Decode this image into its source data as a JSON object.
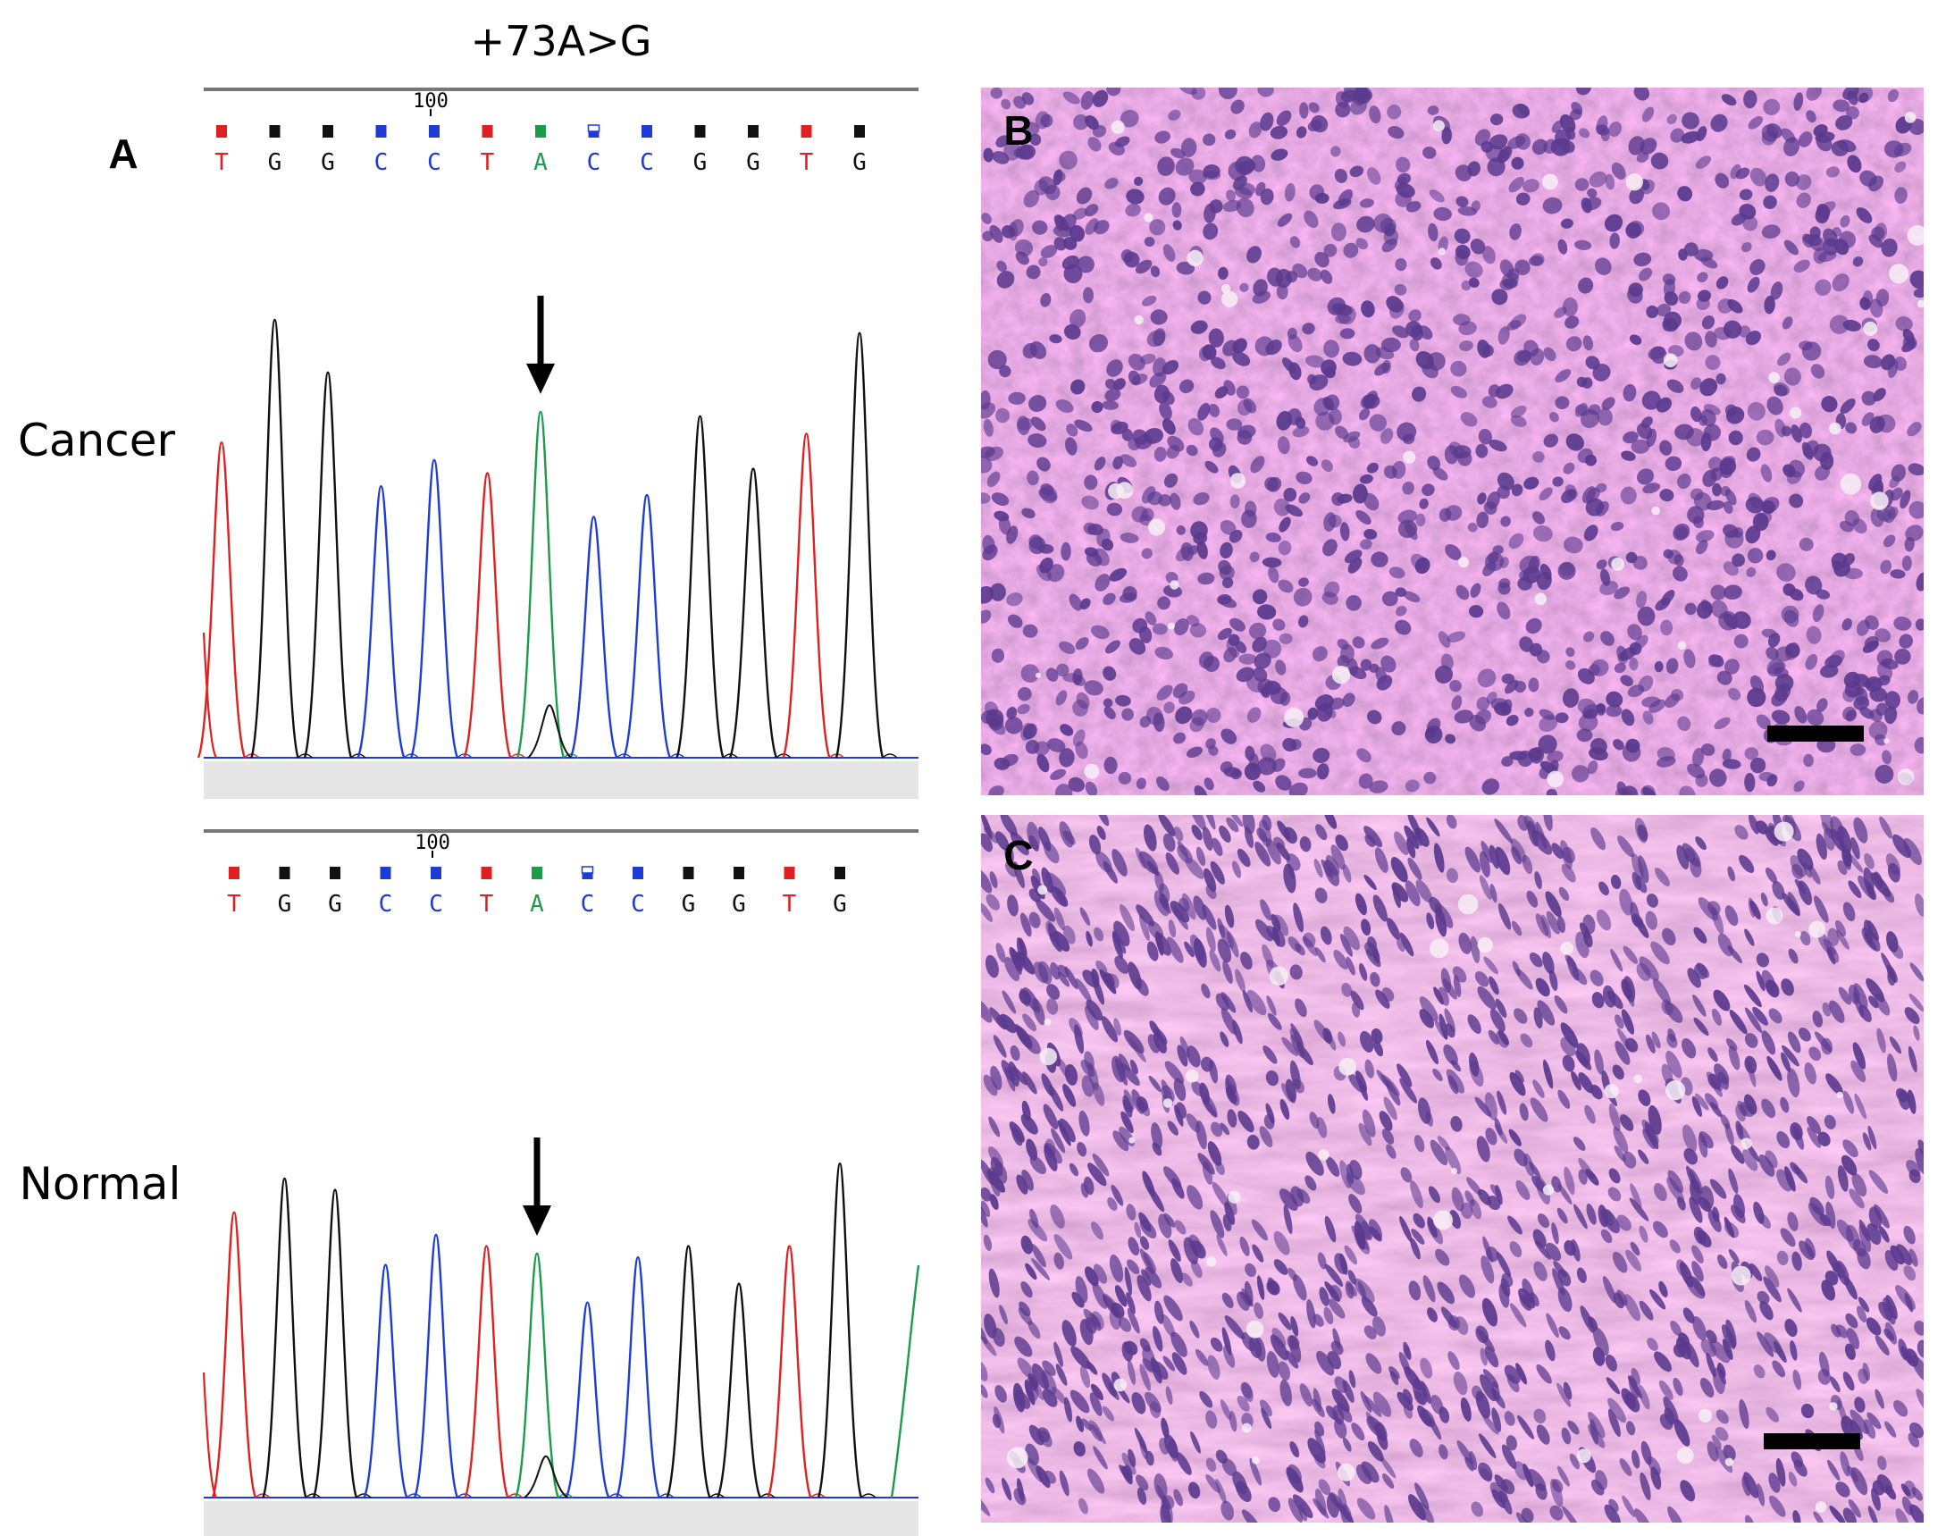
{
  "figure": {
    "mutation_label": "+73A>G",
    "panel_a_label": "A",
    "panel_b_label": "B",
    "panel_c_label": "C",
    "tracks": [
      {
        "name": "Cancer",
        "position_marker": "100",
        "bases": [
          "T",
          "G",
          "G",
          "C",
          "C",
          "T",
          "A",
          "C",
          "C",
          "G",
          "G",
          "T",
          "G"
        ],
        "peak_heights": [
          0.72,
          1.0,
          0.88,
          0.62,
          0.68,
          0.65,
          0.79,
          0.55,
          0.6,
          0.78,
          0.66,
          0.74,
          0.97
        ],
        "secondary_peak_height": 0.12,
        "arrow_base_index": 6
      },
      {
        "name": "Normal",
        "position_marker": "100",
        "bases": [
          "T",
          "G",
          "G",
          "C",
          "C",
          "T",
          "A",
          "C",
          "C",
          "G",
          "G",
          "T",
          "G"
        ],
        "peak_heights": [
          0.76,
          0.85,
          0.82,
          0.62,
          0.7,
          0.67,
          0.65,
          0.52,
          0.64,
          0.67,
          0.57,
          0.67,
          0.89
        ],
        "secondary_peak_height": 0.11,
        "arrow_base_index": 6
      }
    ],
    "colors": {
      "A": "#1a9c4a",
      "C": "#1f3bd6",
      "G": "#111111",
      "T": "#e02020",
      "he_background": "#e58fc7",
      "he_nucleus": "#5b3a8e"
    }
  }
}
